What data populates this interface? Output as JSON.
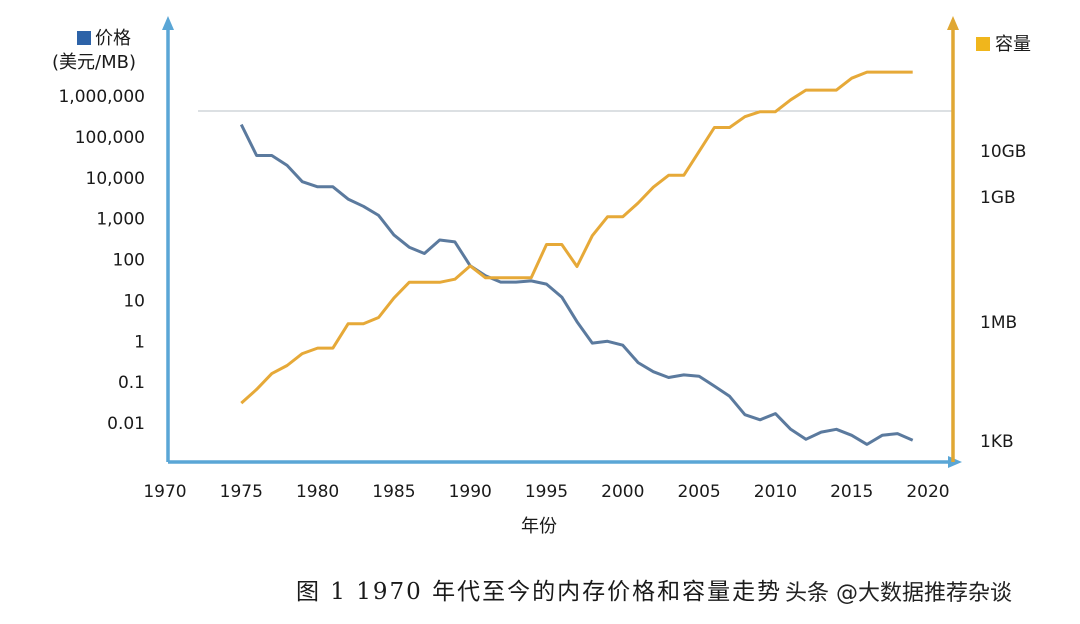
{
  "chart_data": {
    "type": "line",
    "title": "",
    "xlabel": "年份",
    "xlim": [
      1970,
      2020
    ],
    "x_ticks": [
      "1970",
      "1975",
      "1980",
      "1985",
      "1990",
      "1995",
      "2000",
      "2005",
      "2010",
      "2015",
      "2020"
    ],
    "y_left": {
      "label_name": "价格",
      "label_unit": "(美元/MB)",
      "scale": "log",
      "ticks": [
        "1,000,000",
        "100,000",
        "10,000",
        "1,000",
        "100",
        "10",
        "1",
        "0.1",
        "0.01"
      ],
      "tick_values": [
        1000000,
        100000,
        10000,
        1000,
        100,
        10,
        1,
        0.1,
        0.01
      ]
    },
    "y_right": {
      "label_name": "容量",
      "scale": "log",
      "ticks": [
        "10GB",
        "1GB",
        "1MB",
        "1KB"
      ]
    },
    "series": [
      {
        "name": "价格",
        "axis": "left",
        "color": "#5b7a9e",
        "x": [
          1975,
          1976,
          1977,
          1978,
          1979,
          1980,
          1981,
          1982,
          1983,
          1984,
          1985,
          1986,
          1987,
          1988,
          1989,
          1990,
          1991,
          1992,
          1993,
          1994,
          1995,
          1996,
          1997,
          1998,
          1999,
          2000,
          2001,
          2002,
          2003,
          2004,
          2005,
          2006,
          2007,
          2008,
          2009,
          2010,
          2011,
          2012,
          2013,
          2014,
          2015,
          2016,
          2017,
          2018,
          2019
        ],
        "values": [
          200000,
          35000,
          35000,
          20000,
          8000,
          6000,
          6000,
          3000,
          2000,
          1200,
          400,
          200,
          140,
          300,
          270,
          70,
          40,
          28,
          28,
          30,
          25,
          12,
          3,
          0.9,
          1,
          0.8,
          0.3,
          0.18,
          0.13,
          0.15,
          0.14,
          0.08,
          0.045,
          0.016,
          0.012,
          0.017,
          0.007,
          0.004,
          0.006,
          0.007,
          0.005,
          0.003,
          0.005,
          0.0055,
          0.0038
        ]
      },
      {
        "name": "容量",
        "axis": "right",
        "color": "#e6a938",
        "x": [
          1975,
          1976,
          1977,
          1978,
          1979,
          1980,
          1981,
          1982,
          1983,
          1984,
          1985,
          1986,
          1987,
          1988,
          1989,
          1990,
          1991,
          1992,
          1993,
          1994,
          1995,
          1996,
          1997,
          1998,
          1999,
          2000,
          2001,
          2002,
          2003,
          2004,
          2005,
          2006,
          2007,
          2008,
          2009,
          2010,
          2011,
          2012,
          2013,
          2014,
          2015,
          2016,
          2017,
          2018,
          2019
        ],
        "values": [
          0.009,
          0.02,
          0.05,
          0.08,
          0.16,
          0.22,
          0.22,
          0.9,
          0.9,
          1.3,
          4,
          10,
          10,
          10,
          12,
          26,
          13,
          13,
          13,
          13,
          90,
          90,
          25,
          150,
          450,
          450,
          1000,
          2500,
          5000,
          5000,
          20000,
          80000,
          80000,
          150000,
          200000,
          200000,
          400000,
          700000,
          700000,
          700000,
          1400000,
          2000000,
          2000000,
          2000000,
          2000000
        ]
      }
    ],
    "legend": "top (left axis) and top-right (right axis)",
    "grid": false
  },
  "caption": {
    "text": "图 1 1970 年代至今的内存价格和容量走势",
    "watermark": "头条 @大数据推荐杂谈"
  }
}
